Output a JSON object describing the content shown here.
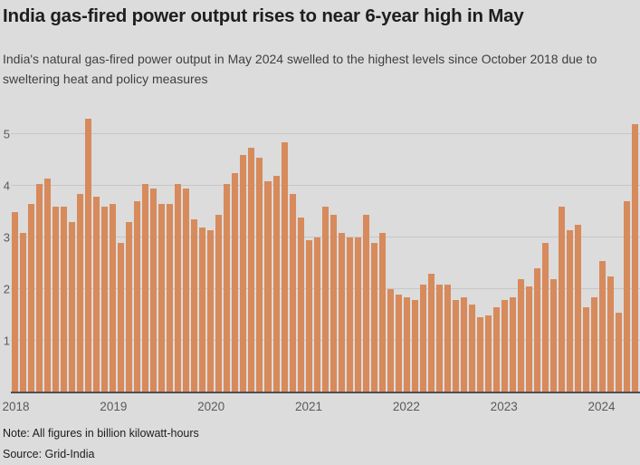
{
  "header": {
    "title": "India gas-fired power output rises to near 6-year high in May",
    "subtitle": "India's natural gas-fired power output in May 2024 swelled to the highest levels since October 2018 due to sweltering heat and policy measures"
  },
  "footer": {
    "note": "Note: All figures in billion kilowatt-hours",
    "source": "Source: Grid-India"
  },
  "colors": {
    "background": "#dcdcdc",
    "bar": "#d78a5b",
    "gridline": "#c6c6c6",
    "baseline": "#4f4f4f",
    "axis_text": "#5a5a5a",
    "title_text": "#1e1e1e",
    "subtitle_text": "#3f3f3f",
    "note_text": "#1d1d1d"
  },
  "chart_data": {
    "type": "bar",
    "title": "India gas-fired power output rises to near 6-year high in May",
    "unit": "billion kilowatt-hours",
    "grid": "horizontal",
    "legend_position": "none",
    "ylim": [
      0,
      5.5
    ],
    "yticks": [
      1,
      2,
      3,
      4,
      5
    ],
    "year_labels": [
      "2018",
      "2019",
      "2020",
      "2021",
      "2022",
      "2023",
      "2024"
    ],
    "x": [
      "2018-01",
      "2018-02",
      "2018-03",
      "2018-04",
      "2018-05",
      "2018-06",
      "2018-07",
      "2018-08",
      "2018-09",
      "2018-10",
      "2018-11",
      "2018-12",
      "2019-01",
      "2019-02",
      "2019-03",
      "2019-04",
      "2019-05",
      "2019-06",
      "2019-07",
      "2019-08",
      "2019-09",
      "2019-10",
      "2019-11",
      "2019-12",
      "2020-01",
      "2020-02",
      "2020-03",
      "2020-04",
      "2020-05",
      "2020-06",
      "2020-07",
      "2020-08",
      "2020-09",
      "2020-10",
      "2020-11",
      "2020-12",
      "2021-01",
      "2021-02",
      "2021-03",
      "2021-04",
      "2021-05",
      "2021-06",
      "2021-07",
      "2021-08",
      "2021-09",
      "2021-10",
      "2021-11",
      "2021-12",
      "2022-01",
      "2022-02",
      "2022-03",
      "2022-04",
      "2022-05",
      "2022-06",
      "2022-07",
      "2022-08",
      "2022-09",
      "2022-10",
      "2022-11",
      "2022-12",
      "2023-01",
      "2023-02",
      "2023-03",
      "2023-04",
      "2023-05",
      "2023-06",
      "2023-07",
      "2023-08",
      "2023-09",
      "2023-10",
      "2023-11",
      "2023-12",
      "2024-01",
      "2024-02",
      "2024-03",
      "2024-04",
      "2024-05"
    ],
    "values": [
      3.5,
      3.1,
      3.65,
      4.05,
      4.15,
      3.6,
      3.6,
      3.3,
      3.85,
      5.3,
      3.8,
      3.6,
      3.65,
      2.9,
      3.3,
      3.7,
      4.05,
      3.95,
      3.65,
      3.65,
      4.05,
      3.95,
      3.35,
      3.2,
      3.15,
      3.45,
      4.05,
      4.25,
      4.6,
      4.75,
      4.55,
      4.1,
      4.2,
      4.85,
      3.85,
      3.4,
      2.95,
      3.0,
      3.6,
      3.45,
      3.1,
      3.0,
      3.0,
      3.45,
      2.9,
      3.1,
      2.0,
      1.9,
      1.85,
      1.8,
      2.1,
      2.3,
      2.1,
      2.1,
      1.8,
      1.85,
      1.7,
      1.45,
      1.5,
      1.65,
      1.8,
      1.85,
      2.2,
      2.05,
      2.4,
      2.9,
      2.2,
      3.6,
      3.15,
      3.25,
      1.65,
      1.85,
      2.55,
      2.25,
      1.55,
      3.7,
      5.2
    ]
  }
}
